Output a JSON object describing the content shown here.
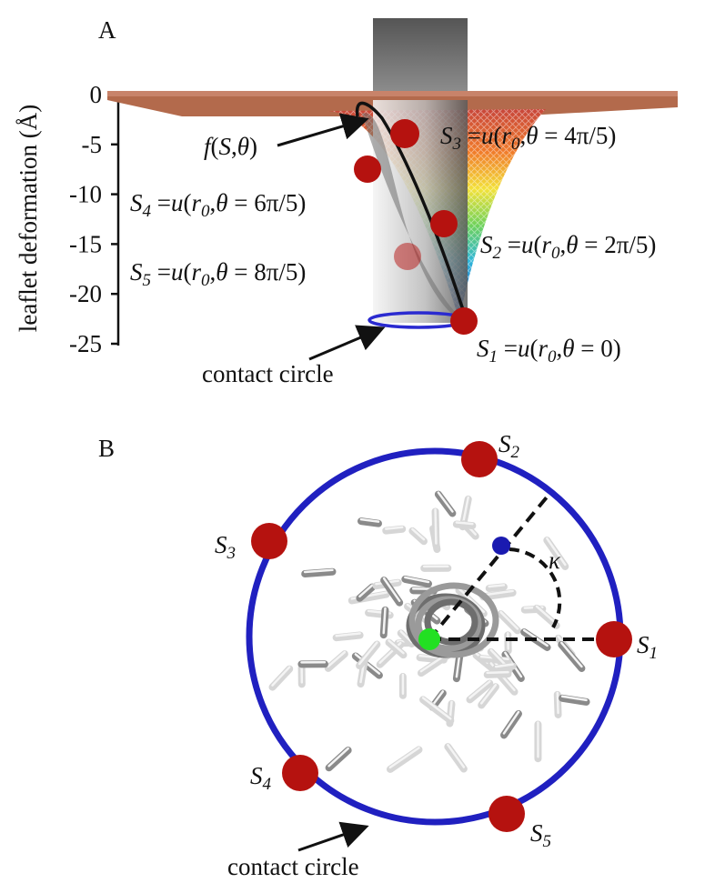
{
  "panel_a": {
    "label": "A",
    "y_axis_label": "leaflet deformation (Å)",
    "y_ticks": [
      0,
      -5,
      -10,
      -15,
      -20,
      -25
    ],
    "annotations": [
      {
        "segments": [
          {
            "text": "f",
            "style": "italic"
          },
          {
            "text": "(",
            "style": "normal"
          },
          {
            "text": "S",
            "style": "italic"
          },
          {
            "text": ",",
            "style": "normal"
          },
          {
            "text": "θ",
            "style": "italic"
          },
          {
            "text": ")",
            "style": "normal"
          }
        ]
      },
      {
        "segments": [
          {
            "text": "S",
            "style": "italic"
          },
          {
            "text": "3",
            "style": "sub"
          },
          {
            "text": " =",
            "style": "normal"
          },
          {
            "text": "u",
            "style": "italic"
          },
          {
            "text": "(",
            "style": "normal"
          },
          {
            "text": "r",
            "style": "italic"
          },
          {
            "text": "0",
            "style": "sub"
          },
          {
            "text": ",",
            "style": "normal"
          },
          {
            "text": "θ",
            "style": "italic"
          },
          {
            "text": " = 4π/5)",
            "style": "normal"
          }
        ]
      },
      {
        "segments": [
          {
            "text": "S",
            "style": "italic"
          },
          {
            "text": "4",
            "style": "sub"
          },
          {
            "text": " =",
            "style": "normal"
          },
          {
            "text": "u",
            "style": "italic"
          },
          {
            "text": "(",
            "style": "normal"
          },
          {
            "text": "r",
            "style": "italic"
          },
          {
            "text": "0",
            "style": "sub"
          },
          {
            "text": ",",
            "style": "normal"
          },
          {
            "text": "θ",
            "style": "italic"
          },
          {
            "text": " = 6π/5)",
            "style": "normal"
          }
        ]
      },
      {
        "segments": [
          {
            "text": "S",
            "style": "italic"
          },
          {
            "text": "2",
            "style": "sub"
          },
          {
            "text": " =",
            "style": "normal"
          },
          {
            "text": "u",
            "style": "italic"
          },
          {
            "text": "(",
            "style": "normal"
          },
          {
            "text": "r",
            "style": "italic"
          },
          {
            "text": "0",
            "style": "sub"
          },
          {
            "text": ",",
            "style": "normal"
          },
          {
            "text": "θ",
            "style": "italic"
          },
          {
            "text": " = 2π/5)",
            "style": "normal"
          }
        ]
      },
      {
        "segments": [
          {
            "text": "S",
            "style": "italic"
          },
          {
            "text": "5",
            "style": "sub"
          },
          {
            "text": " =",
            "style": "normal"
          },
          {
            "text": "u",
            "style": "italic"
          },
          {
            "text": "(",
            "style": "normal"
          },
          {
            "text": "r",
            "style": "italic"
          },
          {
            "text": "0",
            "style": "sub"
          },
          {
            "text": ",",
            "style": "normal"
          },
          {
            "text": "θ",
            "style": "italic"
          },
          {
            "text": " = 8π/5)",
            "style": "normal"
          }
        ]
      },
      {
        "segments": [
          {
            "text": "S",
            "style": "italic"
          },
          {
            "text": "1",
            "style": "sub"
          },
          {
            "text": " =",
            "style": "normal"
          },
          {
            "text": "u",
            "style": "italic"
          },
          {
            "text": "(",
            "style": "normal"
          },
          {
            "text": "r",
            "style": "italic"
          },
          {
            "text": "0",
            "style": "sub"
          },
          {
            "text": ",",
            "style": "normal"
          },
          {
            "text": "θ",
            "style": "italic"
          },
          {
            "text": " = 0)",
            "style": "normal"
          }
        ]
      }
    ],
    "contact_circle": "contact circle"
  },
  "panel_b": {
    "label": "B",
    "sites": [
      {
        "segments": [
          {
            "text": "S",
            "style": "italic"
          },
          {
            "text": "1",
            "style": "sub"
          }
        ]
      },
      {
        "segments": [
          {
            "text": "S",
            "style": "italic"
          },
          {
            "text": "2",
            "style": "sub"
          }
        ]
      },
      {
        "segments": [
          {
            "text": "S",
            "style": "italic"
          },
          {
            "text": "3",
            "style": "sub"
          }
        ]
      },
      {
        "segments": [
          {
            "text": "S",
            "style": "italic"
          },
          {
            "text": "4",
            "style": "sub"
          }
        ]
      },
      {
        "segments": [
          {
            "text": "S",
            "style": "italic"
          },
          {
            "text": "5",
            "style": "sub"
          }
        ]
      }
    ],
    "angle": "κ",
    "contact_circle": "contact circle"
  }
}
